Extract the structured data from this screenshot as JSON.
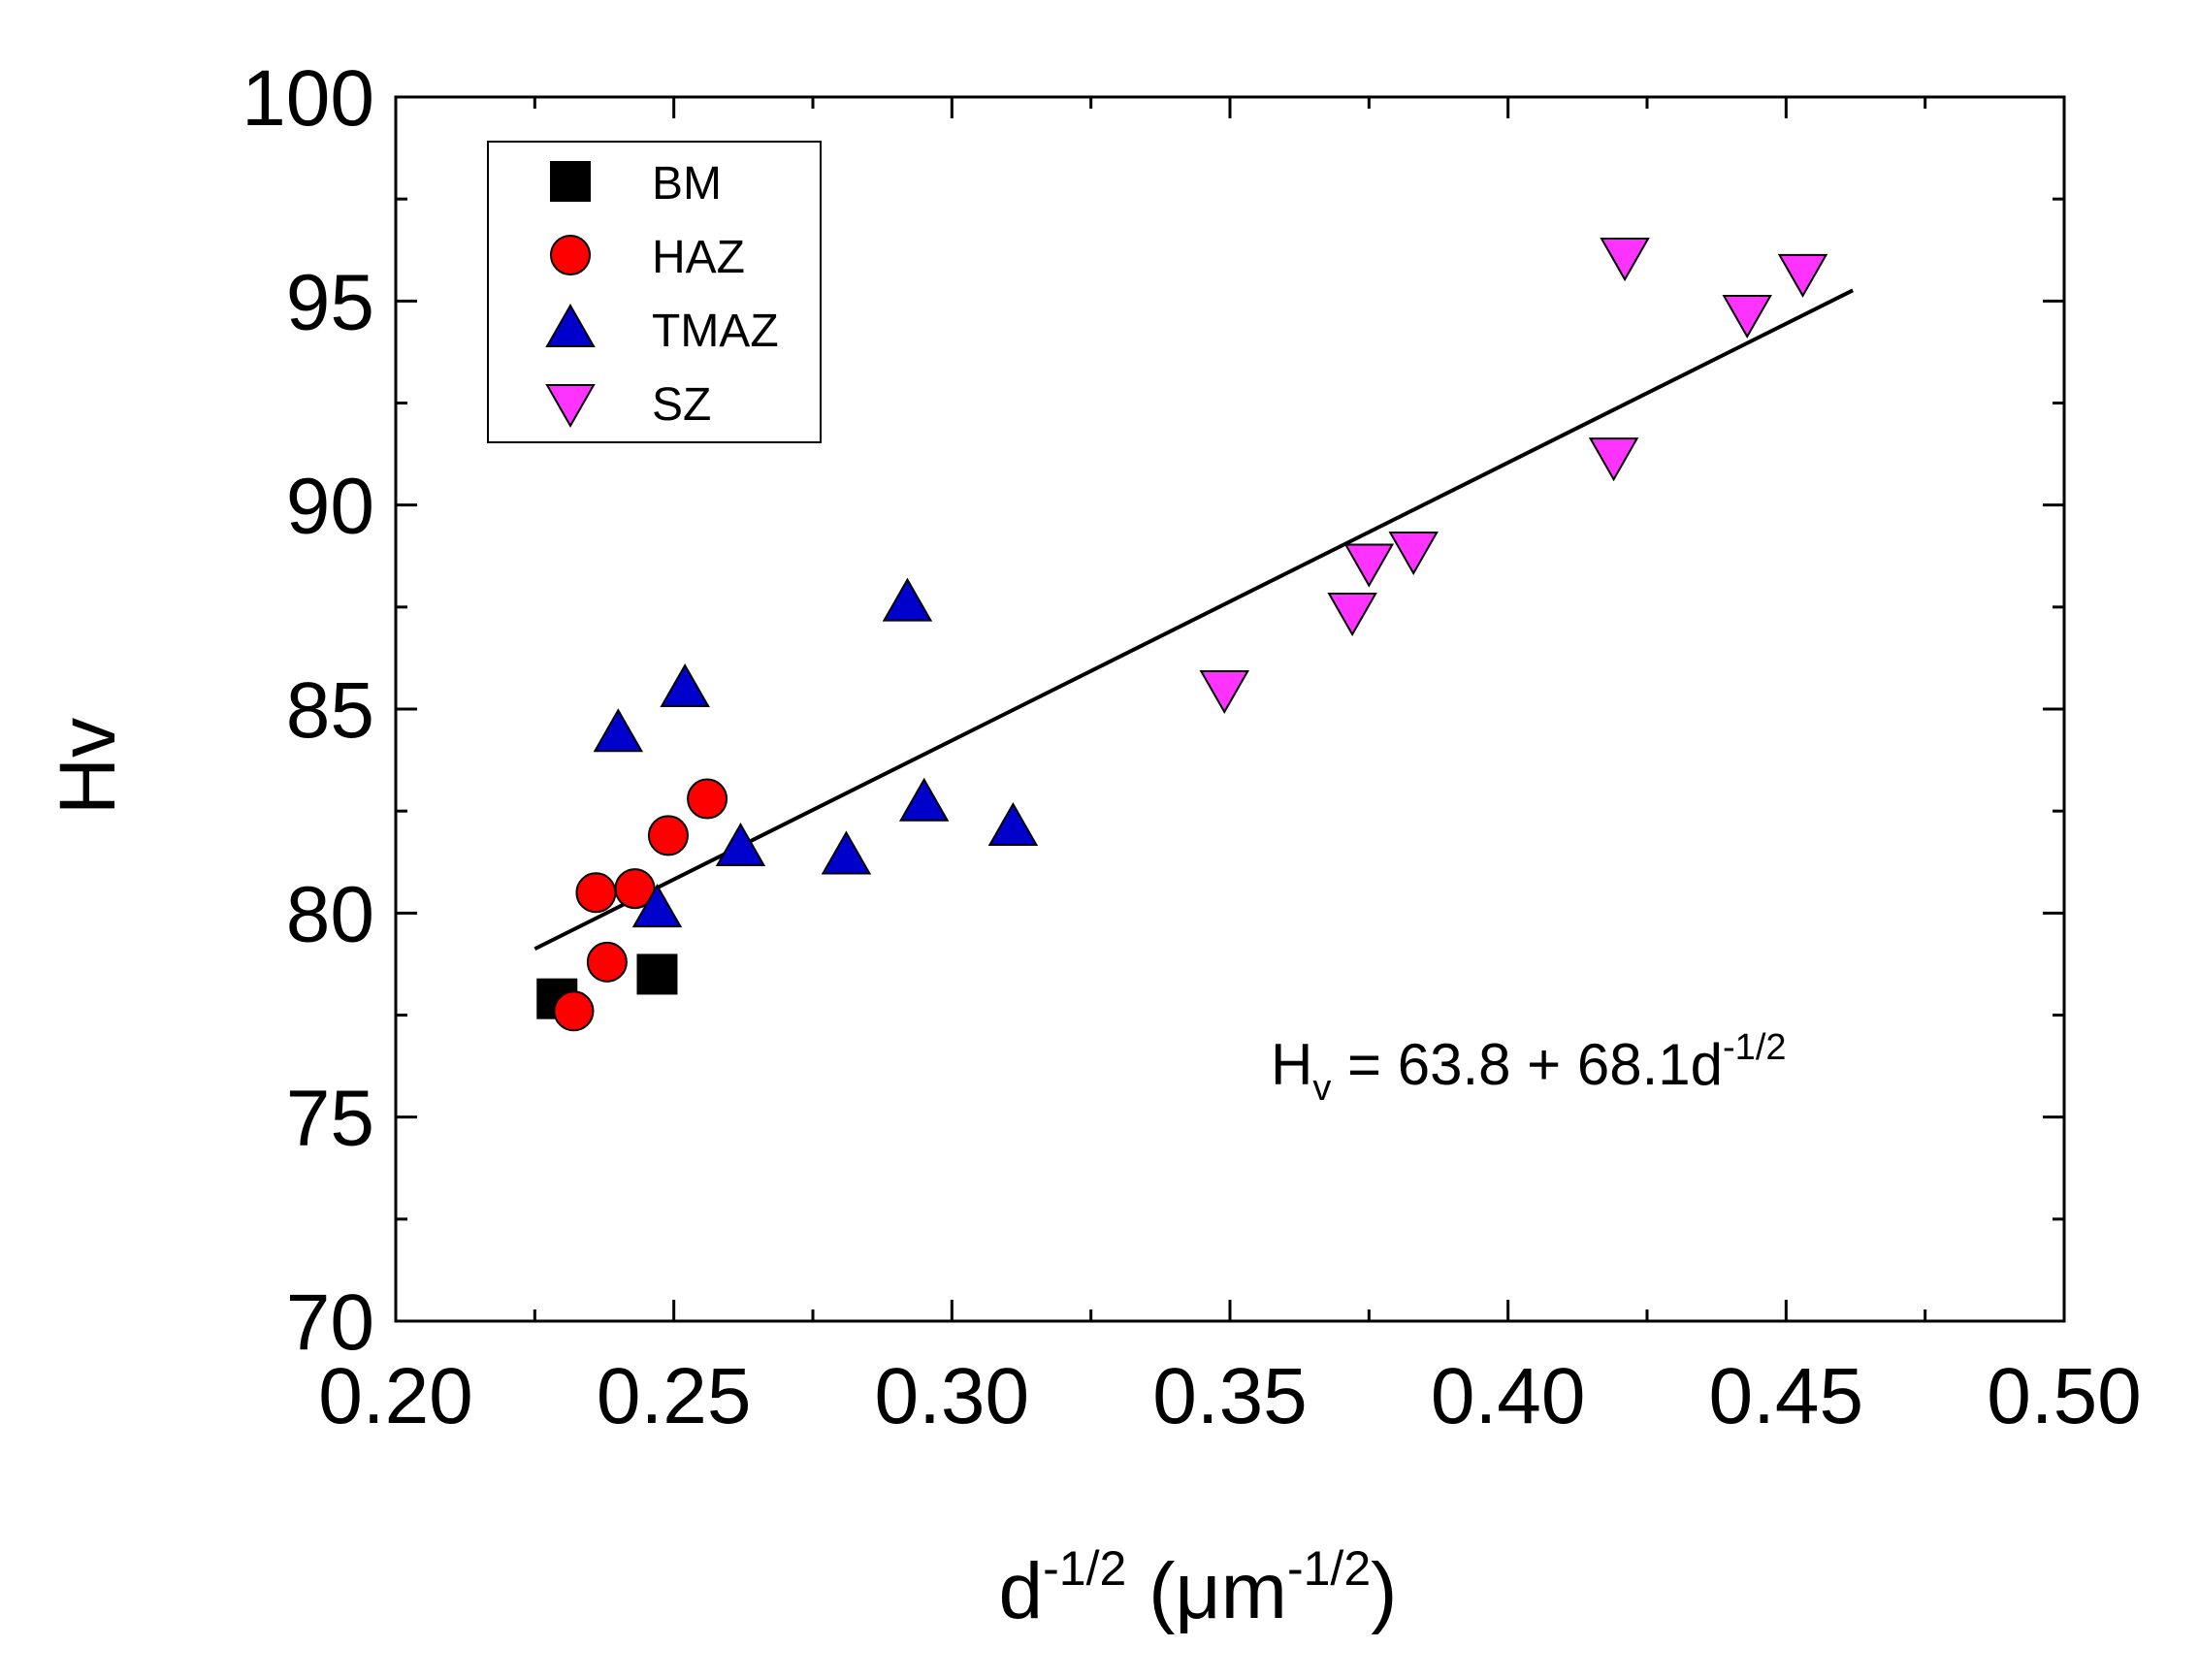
{
  "chart_data": {
    "type": "scatter",
    "title": "",
    "xlabel": "d-1/2 (μm-1/2)",
    "xlabel_parts": {
      "base": "d",
      "base_sup": "-1/2",
      "unit_open": " (μm",
      "unit_sup": "-1/2",
      "unit_close": ")"
    },
    "ylabel": "Hv",
    "xlim": [
      0.2,
      0.5
    ],
    "ylim": [
      70,
      100
    ],
    "x_ticks": [
      "0.20",
      "0.25",
      "0.30",
      "0.35",
      "0.40",
      "0.45",
      "0.50"
    ],
    "y_ticks": [
      "70",
      "75",
      "80",
      "85",
      "90",
      "95",
      "100"
    ],
    "grid": false,
    "legend": "top-left",
    "series": [
      {
        "name": "BM",
        "marker": "square",
        "color": "#000000",
        "points": [
          [
            0.229,
            77.9
          ],
          [
            0.247,
            78.5
          ]
        ]
      },
      {
        "name": "HAZ",
        "marker": "circle",
        "color": "#ff0000",
        "points": [
          [
            0.232,
            77.6
          ],
          [
            0.236,
            80.5
          ],
          [
            0.238,
            78.8
          ],
          [
            0.243,
            80.6
          ],
          [
            0.249,
            81.9
          ],
          [
            0.256,
            82.8
          ]
        ]
      },
      {
        "name": "TMAZ",
        "marker": "triangle-up",
        "color": "#0000cc",
        "points": [
          [
            0.24,
            84.4
          ],
          [
            0.247,
            80.1
          ],
          [
            0.252,
            85.5
          ],
          [
            0.262,
            81.6
          ],
          [
            0.281,
            81.4
          ],
          [
            0.292,
            87.6
          ],
          [
            0.295,
            82.7
          ],
          [
            0.311,
            82.1
          ]
        ]
      },
      {
        "name": "SZ",
        "marker": "triangle-down",
        "color": "#ff33ff",
        "points": [
          [
            0.349,
            85.5
          ],
          [
            0.372,
            87.4
          ],
          [
            0.375,
            88.6
          ],
          [
            0.383,
            88.9
          ],
          [
            0.419,
            91.2
          ],
          [
            0.421,
            96.1
          ],
          [
            0.443,
            94.7
          ],
          [
            0.453,
            95.7
          ]
        ]
      }
    ],
    "fit_line": {
      "intercept": 63.8,
      "slope": 68.1,
      "x_range": [
        0.225,
        0.462
      ]
    },
    "annotation": {
      "prefix": "H",
      "sub": "v",
      "middle": " = 63.8 + 68.1d",
      "sup": "-1/2"
    }
  }
}
